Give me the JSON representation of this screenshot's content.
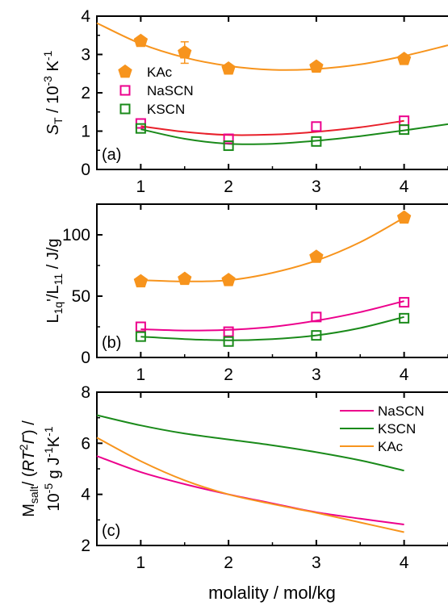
{
  "chart_data": [
    {
      "type": "scatter",
      "panel_label": "(a)",
      "ylabel_parts": {
        "s": "S",
        "sub": "T",
        "mid": " / 10",
        "sup": "-3",
        "unit": " K",
        "sup2": "-1"
      },
      "xlim": [
        0.5,
        4.5
      ],
      "ylim": [
        0,
        4
      ],
      "xticks": [
        1,
        2,
        3,
        4
      ],
      "yticks": [
        0,
        1,
        2,
        3,
        4
      ],
      "legend_position": "center-left",
      "series": [
        {
          "name": "KAc",
          "marker": "pentagon-filled",
          "color": "#f7941d",
          "x": [
            1,
            1.5,
            2,
            3,
            4
          ],
          "y": [
            3.35,
            3.05,
            2.63,
            2.68,
            2.88
          ],
          "yerr": [
            0,
            0.28,
            0,
            0,
            0
          ],
          "fit": {
            "x": [
              0.5,
              1,
              1.5,
              2,
              2.5,
              3,
              3.5,
              4,
              4.5
            ],
            "y": [
              3.82,
              3.28,
              2.92,
              2.7,
              2.6,
              2.62,
              2.74,
              2.96,
              3.24
            ],
            "color": "#f7941d"
          }
        },
        {
          "name": "NaSCN",
          "marker": "square-open",
          "color": "#ec008c",
          "x": [
            1,
            2,
            3,
            4
          ],
          "y": [
            1.2,
            0.8,
            1.12,
            1.27
          ],
          "fit": {
            "x": [
              1,
              1.5,
              2,
              2.5,
              3,
              3.5,
              4
            ],
            "y": [
              1.13,
              0.98,
              0.9,
              0.91,
              0.98,
              1.1,
              1.27
            ],
            "color": "#e8202a"
          }
        },
        {
          "name": "KSCN",
          "marker": "square-open",
          "color": "#1a8a1a",
          "x": [
            1,
            2,
            3,
            4
          ],
          "y": [
            1.07,
            0.62,
            0.73,
            1.04
          ],
          "fit": {
            "x": [
              1,
              1.5,
              2,
              2.5,
              3,
              3.5,
              4,
              4.5
            ],
            "y": [
              1.05,
              0.8,
              0.67,
              0.67,
              0.75,
              0.87,
              1.02,
              1.18
            ],
            "color": "#1a8a1a"
          }
        }
      ]
    },
    {
      "type": "scatter",
      "panel_label": "(b)",
      "ylabel_parts": {
        "a": "L",
        "sub1": "1q",
        "b": "'/L",
        "sub2": "11",
        "c": " / J/g"
      },
      "xlim": [
        0.5,
        4.5
      ],
      "ylim": [
        0,
        125
      ],
      "xticks": [
        1,
        2,
        3,
        4
      ],
      "yticks": [
        0,
        50,
        100
      ],
      "series": [
        {
          "name": "KAc",
          "marker": "pentagon-filled",
          "color": "#f7941d",
          "x": [
            1,
            1.5,
            2,
            3,
            4
          ],
          "y": [
            62,
            64,
            63,
            82,
            114
          ],
          "fit": {
            "x": [
              1,
              1.5,
              2,
              2.5,
              3,
              3.5,
              4
            ],
            "y": [
              63,
              62,
              63,
              69,
              79,
              94,
              114
            ],
            "color": "#f7941d"
          }
        },
        {
          "name": "NaSCN",
          "marker": "square-open",
          "color": "#ec008c",
          "x": [
            1,
            2,
            3,
            4
          ],
          "y": [
            25,
            21,
            33,
            45
          ],
          "fit": {
            "x": [
              1,
              1.5,
              2,
              2.5,
              3,
              3.5,
              4
            ],
            "y": [
              23,
              22,
              22.5,
              25,
              30,
              37,
              46
            ],
            "color": "#ec008c"
          }
        },
        {
          "name": "KSCN",
          "marker": "square-open",
          "color": "#1a8a1a",
          "x": [
            1,
            2,
            3,
            4
          ],
          "y": [
            17,
            13,
            18,
            32
          ],
          "fit": {
            "x": [
              1,
              1.5,
              2,
              2.5,
              3,
              3.5,
              4
            ],
            "y": [
              17,
              15,
              14,
              15,
              18,
              24,
              33
            ],
            "color": "#1a8a1a"
          }
        }
      ]
    },
    {
      "type": "line",
      "panel_label": "(c)",
      "ylabel_parts": {
        "a": "M",
        "sub1": "salt",
        "b": "/ (",
        "rt": "RT",
        "sup1": "2",
        "gamma": "Γ",
        "c": ") /",
        "d": "10",
        "sup2": "-5",
        "e": " g J",
        "sup3": "-1",
        "f": "K",
        "sup4": "-1"
      },
      "xlim": [
        0.5,
        4.5
      ],
      "ylim": [
        2,
        8
      ],
      "xticks": [
        1,
        2,
        3,
        4
      ],
      "yticks": [
        2,
        4,
        6,
        8
      ],
      "xlabel": "molality / mol/kg",
      "legend_position": "top-right",
      "series": [
        {
          "name": "NaSCN",
          "color": "#ec008c",
          "x": [
            0.5,
            1,
            1.5,
            2,
            2.5,
            3,
            3.5,
            4
          ],
          "y": [
            5.5,
            4.87,
            4.4,
            4.0,
            3.65,
            3.3,
            3.05,
            2.82
          ]
        },
        {
          "name": "KSCN",
          "color": "#1a8a1a",
          "x": [
            0.5,
            1,
            1.5,
            2,
            2.5,
            3,
            3.5,
            4
          ],
          "y": [
            7.1,
            6.7,
            6.38,
            6.15,
            5.92,
            5.65,
            5.33,
            4.93
          ]
        },
        {
          "name": "KAc",
          "color": "#f7941d",
          "x": [
            0.5,
            1,
            1.5,
            2,
            2.5,
            3,
            3.5,
            4
          ],
          "y": [
            6.22,
            5.3,
            4.55,
            4.0,
            3.62,
            3.28,
            2.9,
            2.52
          ]
        }
      ]
    }
  ]
}
